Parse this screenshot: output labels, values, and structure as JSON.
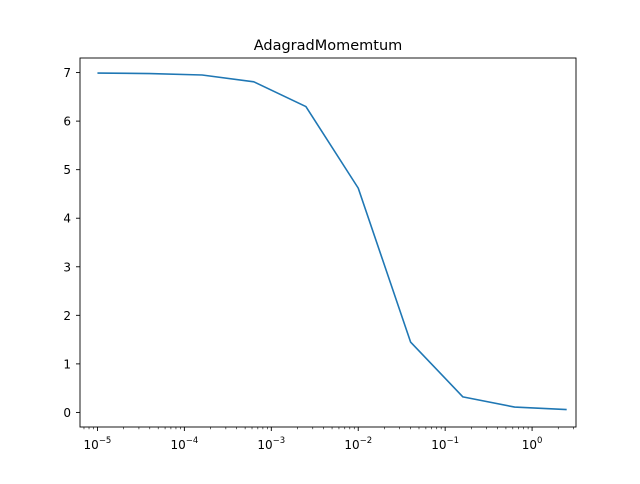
{
  "chart_data": {
    "type": "line",
    "title": "AdagradMomemtum",
    "xlabel": "",
    "ylabel": "",
    "xscale": "log",
    "xlim": [
      6.3e-06,
      3.2
    ],
    "ylim": [
      -0.3,
      7.3
    ],
    "grid": false,
    "x_ticks": [
      {
        "value": 1e-05,
        "base": "10",
        "exp": "−5"
      },
      {
        "value": 0.0001,
        "base": "10",
        "exp": "−4"
      },
      {
        "value": 0.001,
        "base": "10",
        "exp": "−3"
      },
      {
        "value": 0.01,
        "base": "10",
        "exp": "−2"
      },
      {
        "value": 0.1,
        "base": "10",
        "exp": "−1"
      },
      {
        "value": 1,
        "base": "10",
        "exp": "0"
      }
    ],
    "y_ticks": [
      0,
      1,
      2,
      3,
      4,
      5,
      6,
      7
    ],
    "series": [
      {
        "color": "#1f77b4",
        "x": [
          1e-05,
          4e-05,
          0.00016,
          0.00063,
          0.0025,
          0.01,
          0.04,
          0.16,
          0.63,
          2.5
        ],
        "y": [
          6.99,
          6.98,
          6.95,
          6.81,
          6.3,
          4.62,
          1.45,
          0.32,
          0.11,
          0.06
        ]
      }
    ]
  }
}
